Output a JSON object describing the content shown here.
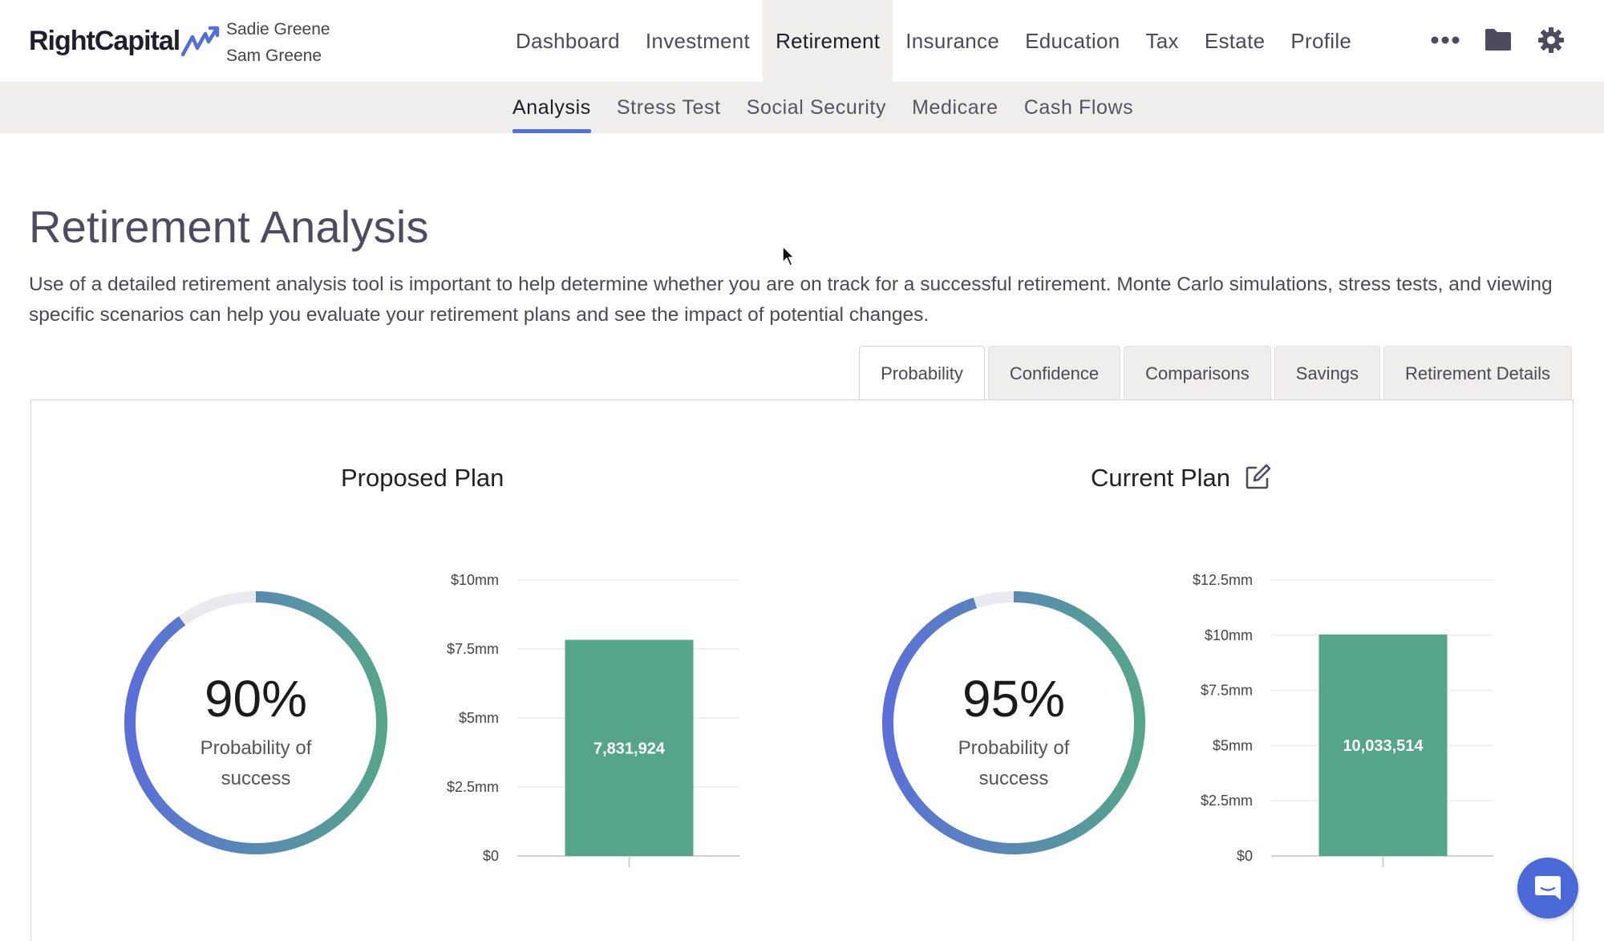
{
  "header": {
    "logo_text": "RightCapital",
    "clients": [
      "Sadie Greene",
      "Sam Greene"
    ],
    "nav": [
      "Dashboard",
      "Investment",
      "Retirement",
      "Insurance",
      "Education",
      "Tax",
      "Estate",
      "Profile"
    ],
    "active_nav": "Retirement",
    "icons": [
      "more-icon",
      "folder-icon",
      "gear-icon"
    ]
  },
  "subnav": {
    "items": [
      "Analysis",
      "Stress Test",
      "Social Security",
      "Medicare",
      "Cash Flows"
    ],
    "active": "Analysis"
  },
  "page": {
    "title": "Retirement Analysis",
    "description": "Use of a detailed retirement analysis tool is important to help determine whether you are on track for a successful retirement. Monte Carlo simulations, stress tests, and viewing specific scenarios can help you evaluate your retirement plans and see the impact of potential changes."
  },
  "tabs": {
    "items": [
      "Probability",
      "Confidence",
      "Comparisons",
      "Savings",
      "Retirement Details"
    ],
    "active": "Probability"
  },
  "plans": {
    "proposed": {
      "title": "Proposed Plan",
      "probability": "90%",
      "probability_value": 0.9,
      "probability_label": "Probability of success"
    },
    "current": {
      "title": "Current Plan",
      "probability": "95%",
      "probability_value": 0.95,
      "probability_label": "Probability of success",
      "edit_icon": "edit-icon"
    }
  },
  "colors": {
    "accent": "#5470d6",
    "bar": "#55a58a",
    "gauge_start": "#5b6fd9",
    "gauge_end": "#55a58a",
    "gauge_track": "#e9e9ef"
  },
  "chart_data": [
    {
      "type": "bar",
      "categories": [
        ""
      ],
      "values": [
        7831924
      ],
      "value_labels": [
        "7,831,924"
      ],
      "yticks": [
        "$0",
        "$2.5mm",
        "$5mm",
        "$7.5mm",
        "$10mm"
      ],
      "ytick_values": [
        0,
        2500000,
        5000000,
        7500000,
        10000000
      ],
      "ylim": [
        0,
        10000000
      ],
      "grid": true
    },
    {
      "type": "bar",
      "categories": [
        ""
      ],
      "values": [
        10033514
      ],
      "value_labels": [
        "10,033,514"
      ],
      "yticks": [
        "$0",
        "$2.5mm",
        "$5mm",
        "$7.5mm",
        "$10mm",
        "$12.5mm"
      ],
      "ytick_values": [
        0,
        2500000,
        5000000,
        7500000,
        10000000,
        12500000
      ],
      "ylim": [
        0,
        12500000
      ],
      "grid": true
    }
  ]
}
